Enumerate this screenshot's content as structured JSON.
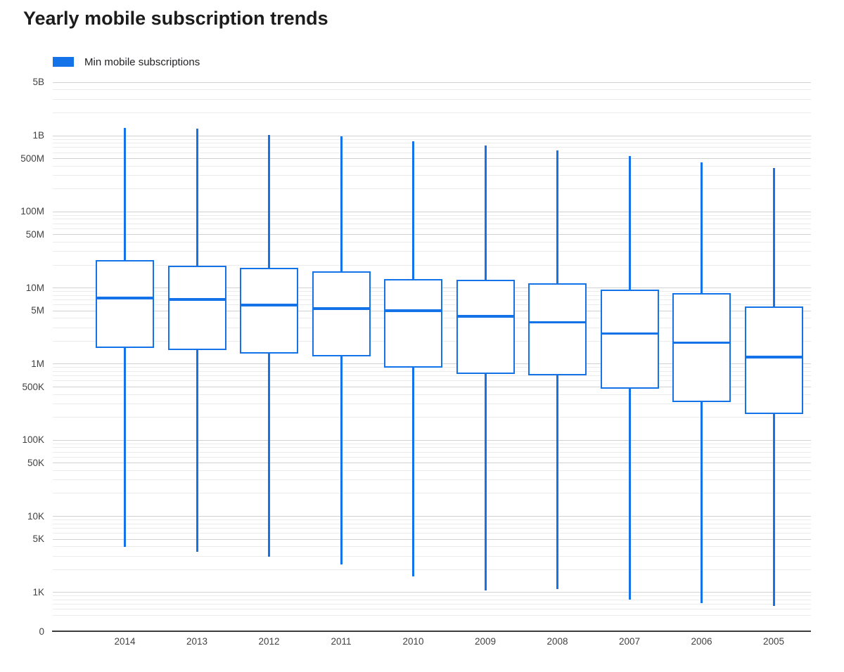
{
  "colors": {
    "series": "#1473e8",
    "grid_minor": "#ebebeb",
    "grid_major": "#d2d2d2",
    "axis_line": "#3c3c3c",
    "tick_text": "#424242",
    "title_text": "#1c1c1c"
  },
  "chart_data": {
    "type": "boxplot",
    "title": "Yearly mobile subscription trends",
    "legend_position": "top-left",
    "legend": [
      {
        "label": "Min mobile subscriptions",
        "color": "#1473e8"
      }
    ],
    "grid": true,
    "y_axis": {
      "scale": "log",
      "range_top": 5000000000,
      "range_bottom": 0,
      "ticks": [
        {
          "label": "5B",
          "value": 5000000000
        },
        {
          "label": "1B",
          "value": 1000000000
        },
        {
          "label": "500M",
          "value": 500000000
        },
        {
          "label": "100M",
          "value": 100000000
        },
        {
          "label": "50M",
          "value": 50000000
        },
        {
          "label": "10M",
          "value": 10000000
        },
        {
          "label": "5M",
          "value": 5000000
        },
        {
          "label": "1M",
          "value": 1000000
        },
        {
          "label": "500K",
          "value": 500000
        },
        {
          "label": "100K",
          "value": 100000
        },
        {
          "label": "50K",
          "value": 50000
        },
        {
          "label": "10K",
          "value": 10000
        },
        {
          "label": "5K",
          "value": 5000
        },
        {
          "label": "1K",
          "value": 1000
        },
        {
          "label": "0",
          "value": 0
        }
      ]
    },
    "x_axis": {
      "categories": [
        "2014",
        "2013",
        "2012",
        "2011",
        "2010",
        "2009",
        "2008",
        "2007",
        "2006",
        "2005"
      ]
    },
    "boxes": [
      {
        "category": "2014",
        "min": 3900,
        "q1": 1610000,
        "median": 7300000,
        "q3": 23000000,
        "max": 1250000000
      },
      {
        "category": "2013",
        "min": 3400,
        "q1": 1510000,
        "median": 7000000,
        "q3": 19400000,
        "max": 1220000000
      },
      {
        "category": "2012",
        "min": 2900,
        "q1": 1360000,
        "median": 5900000,
        "q3": 18200000,
        "max": 1020000000
      },
      {
        "category": "2011",
        "min": 2300,
        "q1": 1250000,
        "median": 5300000,
        "q3": 16300000,
        "max": 960000000
      },
      {
        "category": "2010",
        "min": 1600,
        "q1": 890000,
        "median": 5000000,
        "q3": 12900000,
        "max": 840000000
      },
      {
        "category": "2009",
        "min": 1050,
        "q1": 730000,
        "median": 4200000,
        "q3": 12700000,
        "max": 730000000
      },
      {
        "category": "2008",
        "min": 1100,
        "q1": 700000,
        "median": 3500000,
        "q3": 11400000,
        "max": 630000000
      },
      {
        "category": "2007",
        "min": 800,
        "q1": 470000,
        "median": 2500000,
        "q3": 9400000,
        "max": 530000000
      },
      {
        "category": "2006",
        "min": 720,
        "q1": 310000,
        "median": 1900000,
        "q3": 8500000,
        "max": 440000000
      },
      {
        "category": "2005",
        "min": 660,
        "q1": 220000,
        "median": 1220000,
        "q3": 5600000,
        "max": 370000000
      }
    ]
  }
}
